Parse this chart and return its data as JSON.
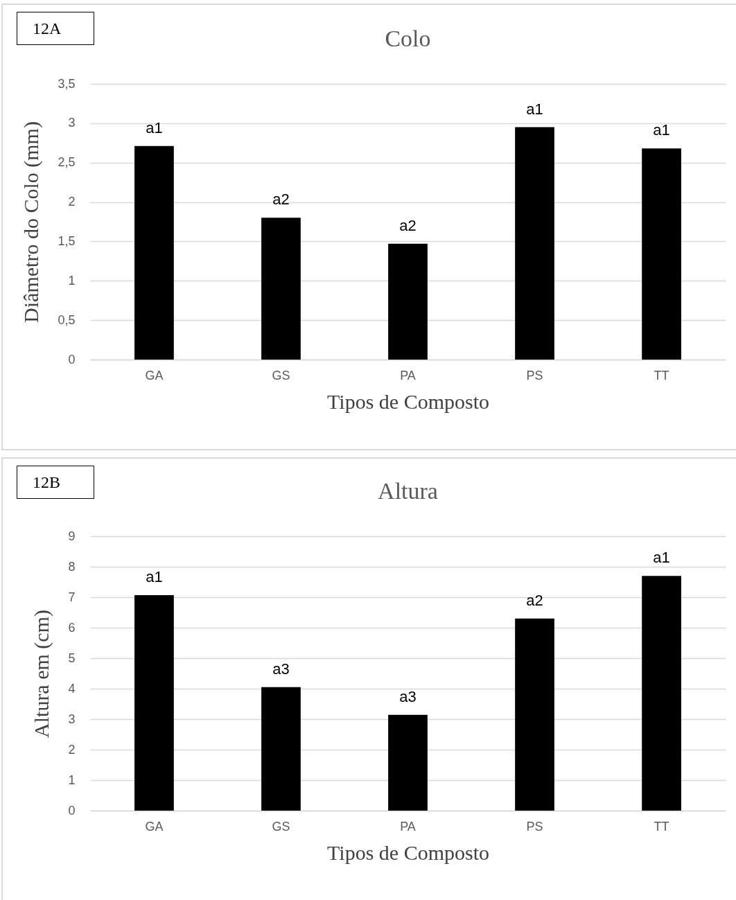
{
  "chart_data": [
    {
      "type": "bar",
      "title": "Colo",
      "xlabel": "Tipos de Composto",
      "ylabel": "Diâmetro do Colo (mm)",
      "categories": [
        "GA",
        "GS",
        "PA",
        "PS",
        "TT"
      ],
      "values": [
        2.71,
        1.8,
        1.47,
        2.95,
        2.68
      ],
      "color": "#000000",
      "ylim": [
        0,
        3.5
      ],
      "yticks": [
        {
          "value": 0,
          "label": "0"
        },
        {
          "value": 0.5,
          "label": "0,5"
        },
        {
          "value": 1,
          "label": "1"
        },
        {
          "value": 1.5,
          "label": "1,5"
        },
        {
          "value": 2,
          "label": "2"
        },
        {
          "value": 2.5,
          "label": "2,5"
        },
        {
          "value": 3,
          "label": "3"
        },
        {
          "value": 3.5,
          "label": "3,5"
        }
      ],
      "grid": "y",
      "annotations": [
        "12A",
        {
          "text": "a1",
          "x": "GA",
          "y": 2.71
        },
        {
          "text": "a2",
          "x": "GS",
          "y": 1.8
        },
        {
          "text": "a2",
          "x": "PA",
          "y": 1.47
        },
        {
          "text": "a1",
          "x": "PS",
          "y": 2.95
        },
        {
          "text": "a1",
          "x": "TT",
          "y": 2.68
        }
      ]
    },
    {
      "type": "bar",
      "title": "Altura",
      "xlabel": "Tipos de Composto",
      "ylabel": "Altura em (cm)",
      "categories": [
        "GA",
        "GS",
        "PA",
        "PS",
        "TT"
      ],
      "values": [
        7.07,
        4.05,
        3.14,
        6.3,
        7.7
      ],
      "color": "#000000",
      "ylim": [
        0,
        9
      ],
      "yticks": [
        0,
        1,
        2,
        3,
        4,
        5,
        6,
        7,
        8,
        9
      ],
      "grid": "y",
      "annotations": [
        "12B",
        {
          "text": "a1",
          "x": "GA",
          "y": 7.07
        },
        {
          "text": "a3",
          "x": "GS",
          "y": 4.05
        },
        {
          "text": "a3",
          "x": "PA",
          "y": 3.14
        },
        {
          "text": "a2",
          "x": "PS",
          "y": 6.3
        },
        {
          "text": "a1",
          "x": "TT",
          "y": 7.7
        }
      ]
    }
  ]
}
